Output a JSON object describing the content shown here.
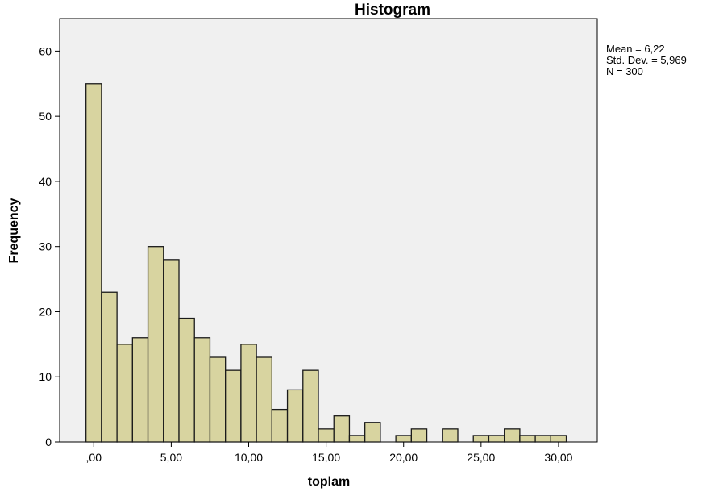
{
  "chart_data": {
    "type": "bar",
    "title": "Histogram",
    "xlabel": "toplam",
    "ylabel": "Frequency",
    "bin_width": 1,
    "bin_centers": [
      0,
      1,
      2,
      3,
      4,
      5,
      6,
      7,
      8,
      9,
      10,
      11,
      12,
      13,
      14,
      15,
      16,
      17,
      18,
      19,
      20,
      21,
      22,
      23,
      24,
      25,
      26,
      27,
      28,
      29,
      30
    ],
    "values": [
      55,
      23,
      15,
      16,
      30,
      28,
      19,
      16,
      13,
      11,
      15,
      13,
      5,
      8,
      11,
      2,
      4,
      1,
      3,
      0,
      1,
      2,
      0,
      2,
      0,
      1,
      1,
      2,
      1,
      1,
      1
    ],
    "xlim": [
      -2.2,
      32.5
    ],
    "ylim": [
      0,
      65
    ],
    "x_ticks": [
      0,
      5,
      10,
      15,
      20,
      25,
      30
    ],
    "x_tick_labels": [
      ",00",
      "5,00",
      "10,00",
      "15,00",
      "20,00",
      "25,00",
      "30,00"
    ],
    "y_ticks": [
      0,
      10,
      20,
      30,
      40,
      50,
      60
    ],
    "y_tick_labels": [
      "0",
      "10",
      "20",
      "30",
      "40",
      "50",
      "60"
    ],
    "stats": {
      "mean_label": "Mean = 6,22",
      "std_label": "Std. Dev. = 5,969",
      "n_label": "N = 300"
    },
    "colors": {
      "bar_fill": "#d8d4a0",
      "bar_stroke": "#1a1a1a",
      "plot_background": "#f0f0f0",
      "frame": "#000000"
    },
    "grid": false,
    "legend": "none"
  }
}
